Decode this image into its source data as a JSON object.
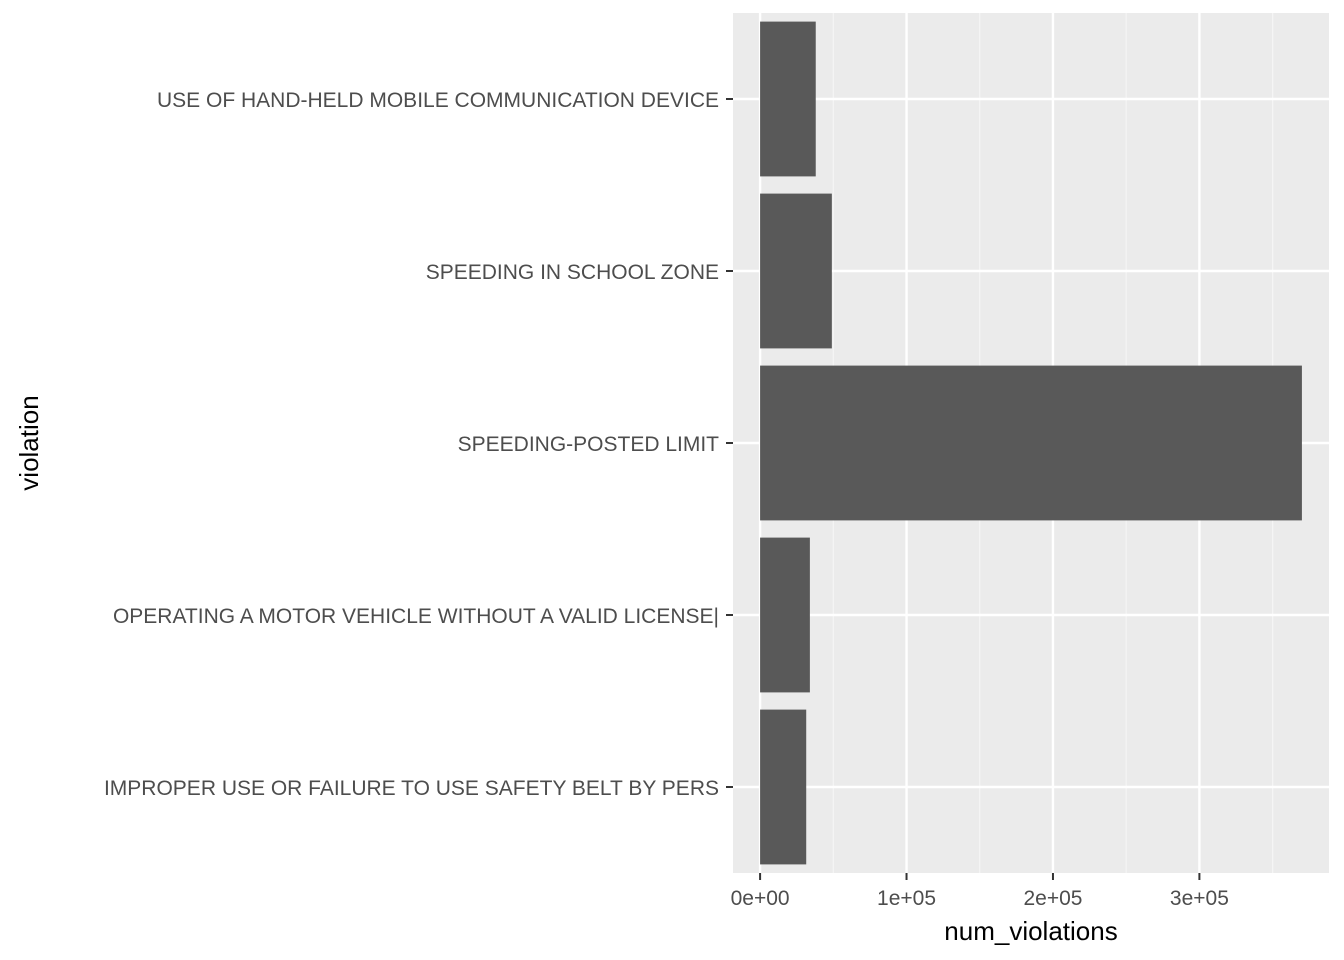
{
  "chart_data": {
    "type": "bar",
    "orientation": "horizontal",
    "categories": [
      "USE OF HAND-HELD MOBILE COMMUNICATION DEVICE",
      "SPEEDING IN SCHOOL ZONE",
      "SPEEDING-POSTED LIMIT",
      "OPERATING A MOTOR VEHICLE WITHOUT A VALID LICENSE|",
      "IMPROPER USE OR FAILURE TO USE SAFETY BELT BY PERS"
    ],
    "values": [
      38000,
      49000,
      370000,
      34000,
      31500
    ],
    "title": "",
    "xlabel": "num_violations",
    "ylabel": "violation",
    "xlim": [
      -18500,
      388500
    ],
    "x_ticks": [
      0,
      100000,
      200000,
      300000
    ],
    "x_tick_labels": [
      "0e+00",
      "1e+05",
      "2e+05",
      "3e+05"
    ],
    "grid": true,
    "legend": "none",
    "colors": {
      "panel_background": "#ebebeb",
      "grid_major": "#ffffff",
      "grid_minor": "#f5f5f5",
      "bar_fill": "#595959",
      "tick_text": "#4d4d4d",
      "tick_mark": "#333333",
      "title_text": "#000000"
    }
  }
}
